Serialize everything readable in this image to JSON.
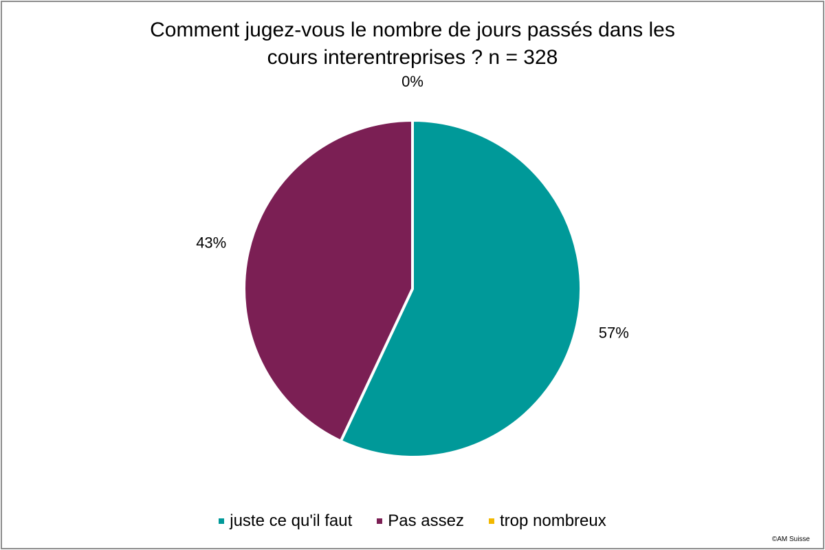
{
  "chart_data": {
    "type": "pie",
    "title_lines": [
      "Comment jugez-vous le nombre de jours passés dans les",
      "cours interentreprises ? n = 328"
    ],
    "slices": [
      {
        "label": "juste ce qu'il faut",
        "value": 57,
        "value_label": "57%",
        "color": "#009999"
      },
      {
        "label": "Pas assez",
        "value": 43,
        "value_label": "43%",
        "color": "#7b1f54"
      },
      {
        "label": "trop nombreux",
        "value": 0,
        "value_label": "0%",
        "color": "#f2b800"
      }
    ],
    "legend_position": "bottom"
  },
  "footer": {
    "copyright": "©AM Suisse"
  }
}
